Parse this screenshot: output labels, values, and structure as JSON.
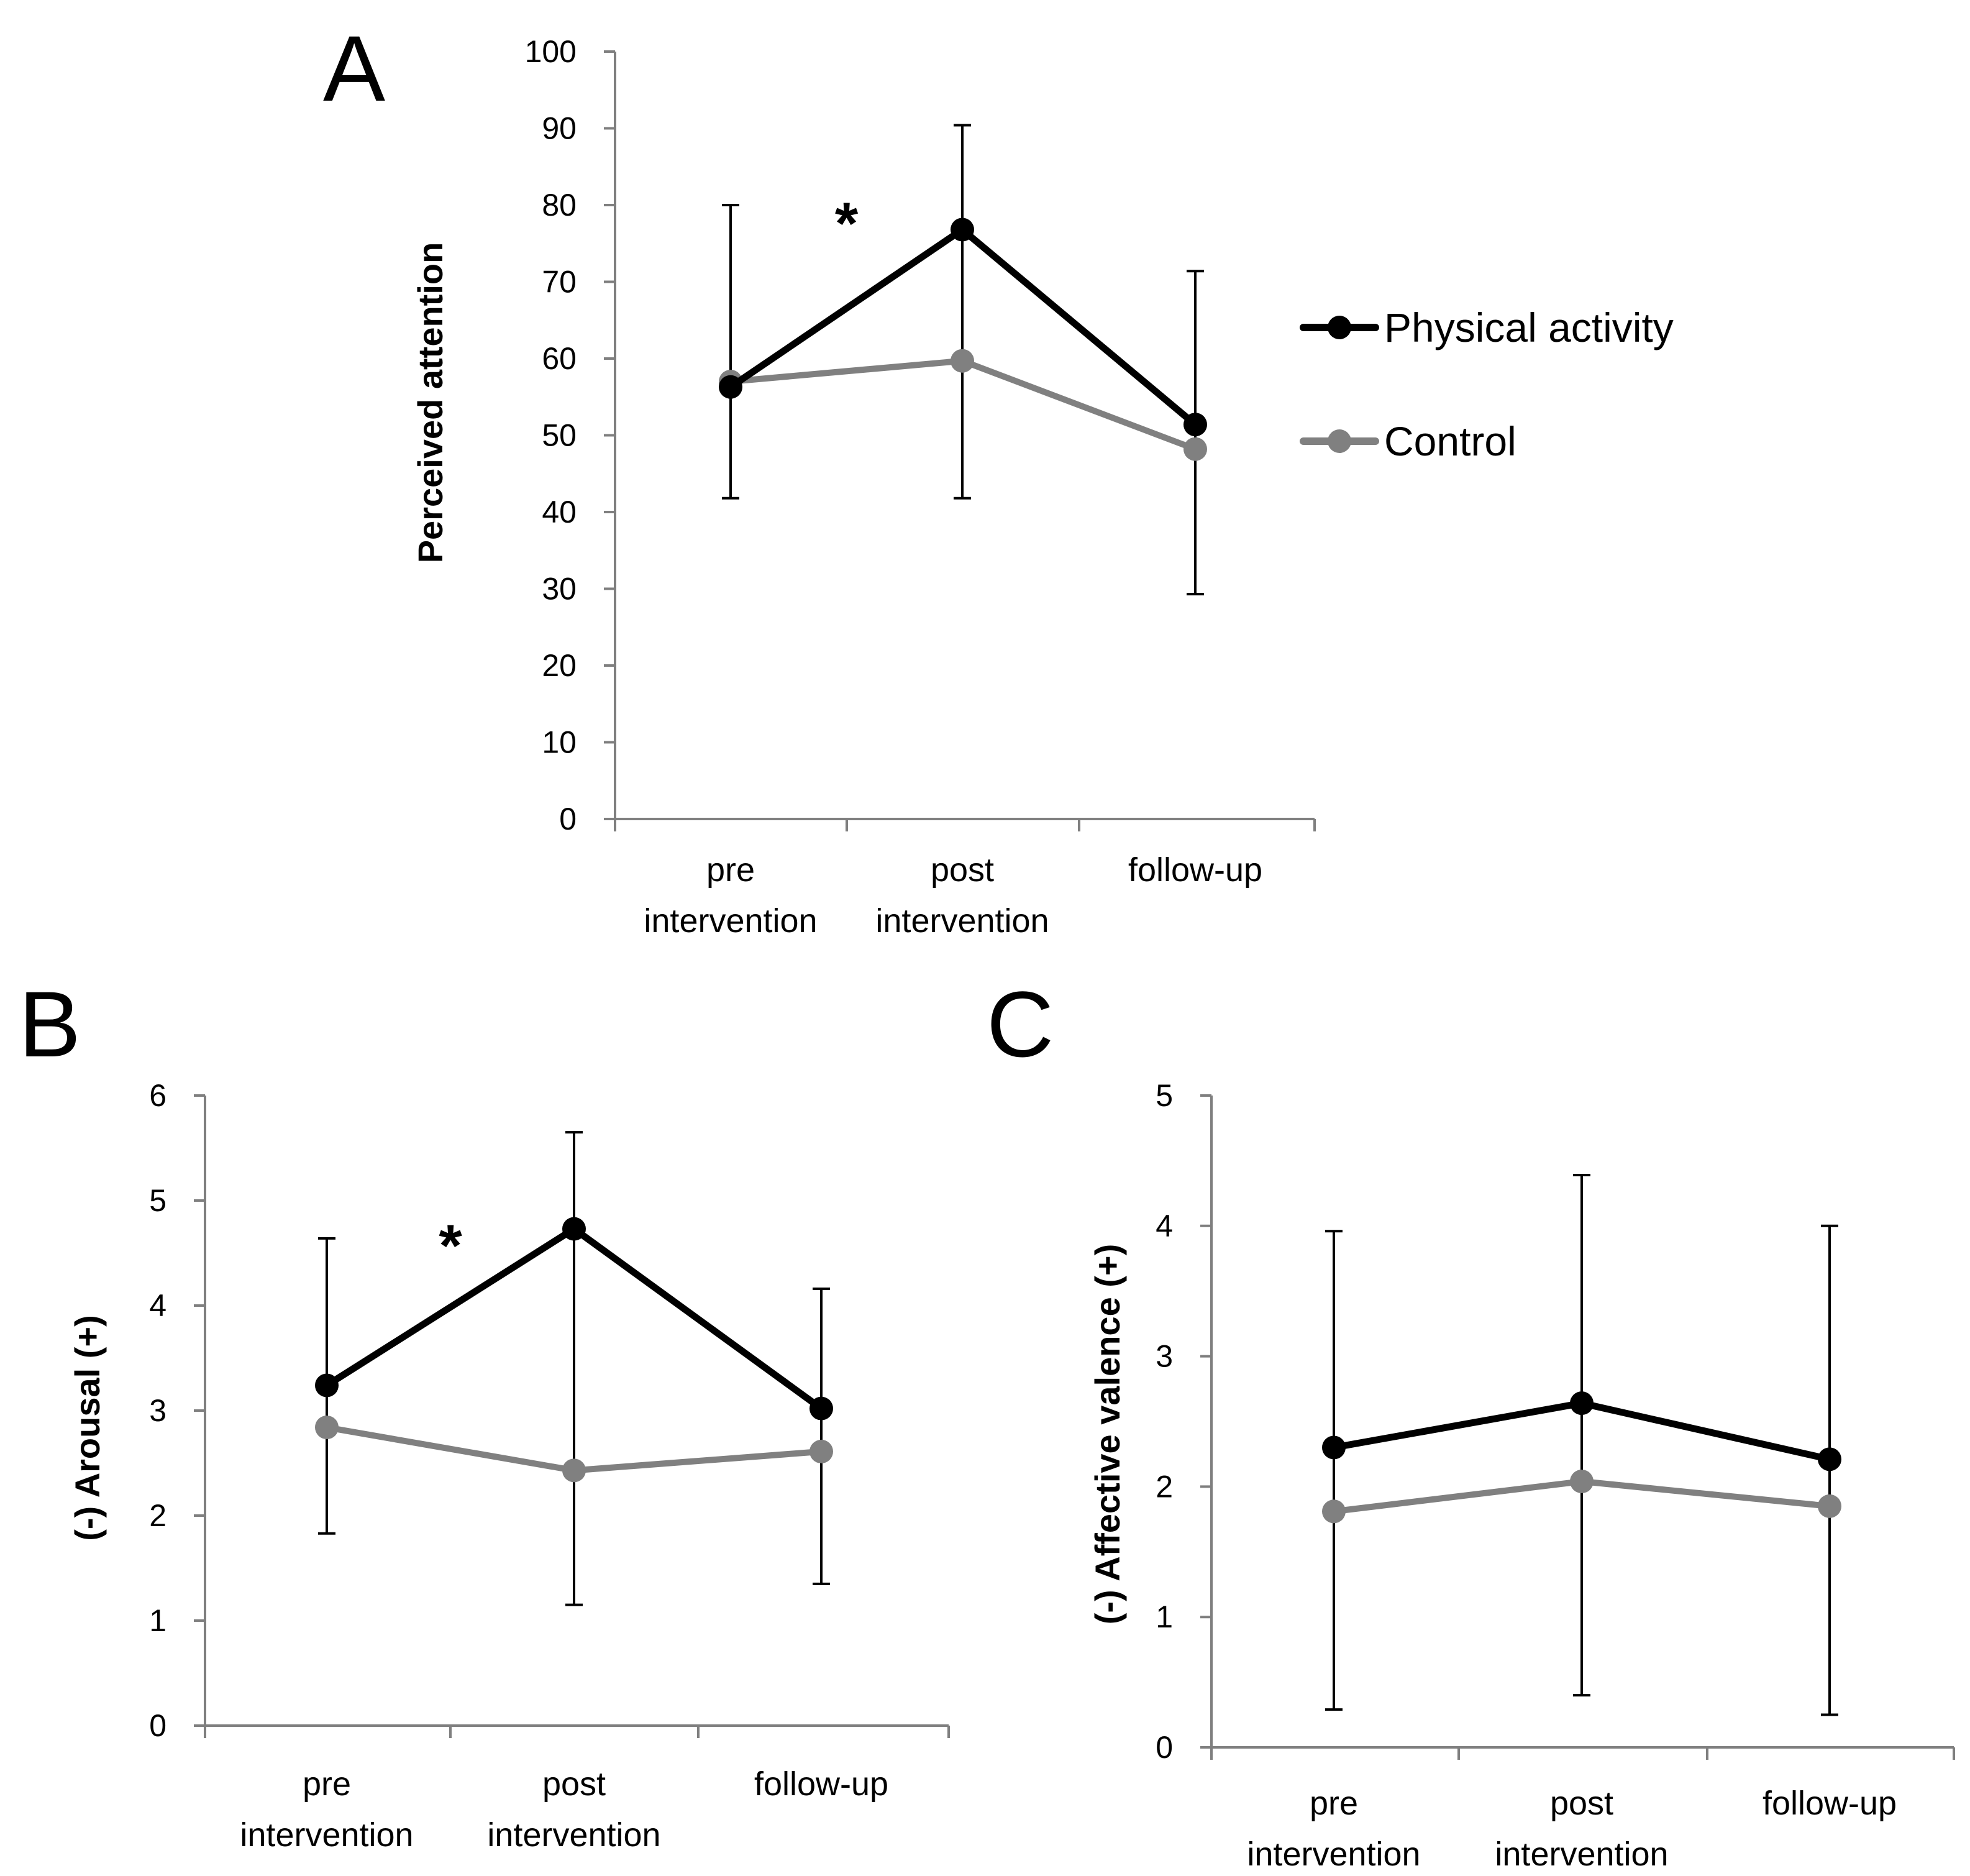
{
  "colors": {
    "physical_activity": "#000000",
    "control": "#808080",
    "error_bar": "#000000",
    "axis": "#7f7f7f"
  },
  "legend": {
    "items": [
      {
        "label": "Physical activity",
        "color": "#000000"
      },
      {
        "label": "Control",
        "color": "#808080"
      }
    ]
  },
  "chart_data": [
    {
      "panel": "A",
      "type": "line",
      "ylabel": "Perceived attention",
      "ylim": [
        0,
        100
      ],
      "yticks": [
        0,
        10,
        20,
        30,
        40,
        50,
        60,
        70,
        80,
        90,
        100
      ],
      "categories": [
        [
          "pre",
          "intervention"
        ],
        [
          "post",
          "intervention"
        ],
        [
          "follow-up"
        ]
      ],
      "series": [
        {
          "name": "Physical activity",
          "values": [
            56.3,
            76.8,
            51.4
          ],
          "error_bars": [
            [
              41.8,
              80.0
            ],
            [
              41.8,
              90.4
            ],
            [
              29.3,
              71.4
            ]
          ]
        },
        {
          "name": "Control",
          "values": [
            57.0,
            59.7,
            48.2
          ]
        }
      ],
      "annotations": [
        {
          "text": "*",
          "between": [
            0,
            1
          ],
          "y": 78
        }
      ]
    },
    {
      "panel": "B",
      "type": "line",
      "ylabel": "(-)  Arousal  (+)",
      "ylim": [
        0,
        6
      ],
      "yticks": [
        0,
        1,
        2,
        3,
        4,
        5,
        6
      ],
      "categories": [
        [
          "pre",
          "intervention"
        ],
        [
          "post",
          "intervention"
        ],
        [
          "follow-up"
        ]
      ],
      "series": [
        {
          "name": "Physical activity",
          "values": [
            3.24,
            4.73,
            3.02
          ],
          "error_bars": [
            [
              1.83,
              4.64
            ],
            [
              1.15,
              5.65
            ],
            [
              1.35,
              4.16
            ]
          ]
        },
        {
          "name": "Control",
          "values": [
            2.84,
            2.43,
            2.61
          ]
        }
      ],
      "annotations": [
        {
          "text": "*",
          "between": [
            0,
            1
          ],
          "y": 4.6
        }
      ]
    },
    {
      "panel": "C",
      "type": "line",
      "ylabel": "(-)  Affective valence  (+)",
      "ylim": [
        0,
        5
      ],
      "yticks": [
        0,
        1,
        2,
        3,
        4,
        5
      ],
      "categories": [
        [
          "pre",
          "intervention"
        ],
        [
          "post",
          "intervention"
        ],
        [
          "follow-up"
        ]
      ],
      "series": [
        {
          "name": "Physical activity",
          "values": [
            2.3,
            2.64,
            2.21
          ],
          "error_bars": [
            [
              0.29,
              3.96
            ],
            [
              0.4,
              4.39
            ],
            [
              0.25,
              4.0
            ]
          ]
        },
        {
          "name": "Control",
          "values": [
            1.81,
            2.04,
            1.85
          ]
        }
      ],
      "annotations": []
    }
  ]
}
